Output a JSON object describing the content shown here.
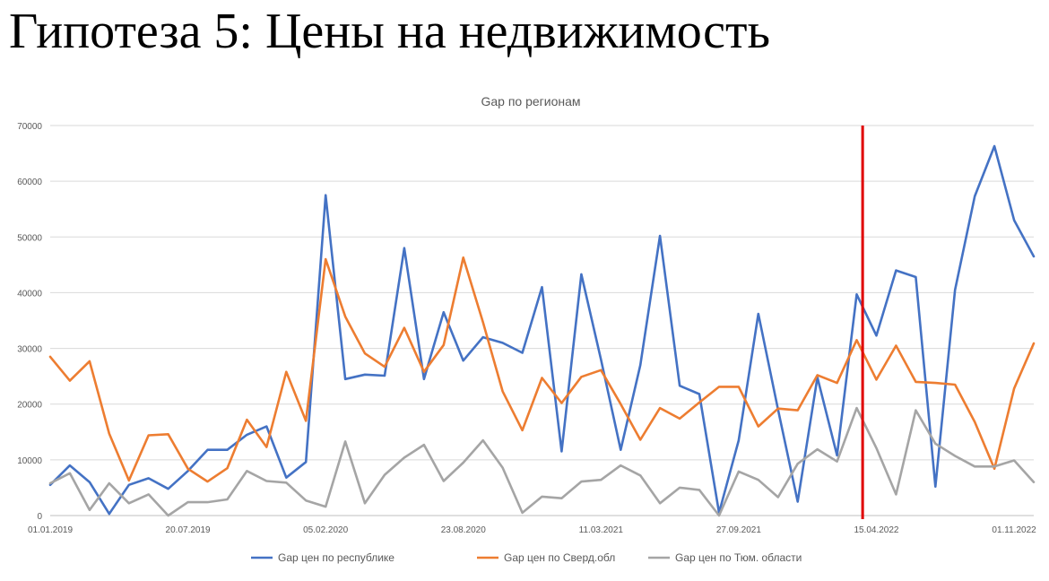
{
  "slide": {
    "title": "Гипотеза 5: Цены на недвижимость"
  },
  "chart_data": {
    "type": "line",
    "title": "Gap по регионам",
    "xlabel": "",
    "ylabel": "",
    "ylim": [
      0,
      70000
    ],
    "y_ticks": [
      "0",
      "10000",
      "20000",
      "30000",
      "40000",
      "50000",
      "60000",
      "70000"
    ],
    "x_tick_labels": [
      {
        "index": 0,
        "label": "01.01.2019"
      },
      {
        "index": 7,
        "label": "20.07.2019"
      },
      {
        "index": 14,
        "label": "05.02.2020"
      },
      {
        "index": 21,
        "label": "23.08.2020"
      },
      {
        "index": 28,
        "label": "11.03.2021"
      },
      {
        "index": 35,
        "label": "27.09.2021"
      },
      {
        "index": 42,
        "label": "15.04.2022"
      },
      {
        "index": 49,
        "label": "01.11.2022"
      }
    ],
    "grid": true,
    "legend_position": "bottom",
    "vertical_marker": {
      "index": 41.3,
      "color": "#e00000"
    },
    "series": [
      {
        "name": "Gap цен по республике",
        "color": "#4472c4",
        "values": [
          5500,
          9000,
          6000,
          300,
          5500,
          6700,
          4800,
          8000,
          11800,
          11800,
          14500,
          16000,
          6800,
          9600,
          57500,
          24500,
          25300,
          25100,
          48000,
          24500,
          36500,
          27800,
          32000,
          31000,
          29200,
          41000,
          11500,
          43300,
          28000,
          11800,
          27000,
          50200,
          23300,
          21800,
          500,
          13500,
          36200,
          19000,
          2500,
          24800,
          10800,
          39700,
          32300,
          44000,
          42800,
          5200,
          40500,
          57300,
          66300,
          53000,
          46500
        ]
      },
      {
        "name": "Gap цен по Сверд.обл",
        "color": "#ed7d31",
        "values": [
          28500,
          24200,
          27700,
          14700,
          6300,
          14400,
          14600,
          8400,
          6100,
          8500,
          17200,
          12300,
          25800,
          17000,
          46000,
          35700,
          29100,
          26700,
          33700,
          25800,
          30600,
          46300,
          34700,
          22300,
          15300,
          24700,
          20200,
          24900,
          26100,
          20000,
          13600,
          19300,
          17400,
          20300,
          23100,
          23100,
          16000,
          19200,
          18900,
          25200,
          23800,
          31500,
          24400,
          30500,
          24000,
          23800,
          23500,
          16800,
          8400,
          22800,
          30900
        ]
      },
      {
        "name": "Gap цен по Тюм. области",
        "color": "#a5a5a5",
        "values": [
          5800,
          7600,
          1000,
          5800,
          2200,
          3800,
          0,
          2400,
          2400,
          2900,
          8000,
          6200,
          5900,
          2700,
          1600,
          13300,
          2200,
          7300,
          10400,
          12700,
          6200,
          9500,
          13500,
          8600,
          500,
          3400,
          3100,
          6100,
          6400,
          9000,
          7200,
          2200,
          5000,
          4600,
          0,
          7900,
          6400,
          3300,
          9300,
          11900,
          9700,
          19300,
          12100,
          3800,
          18900,
          12900,
          10700,
          8800,
          8800,
          9900,
          6000
        ]
      }
    ]
  }
}
